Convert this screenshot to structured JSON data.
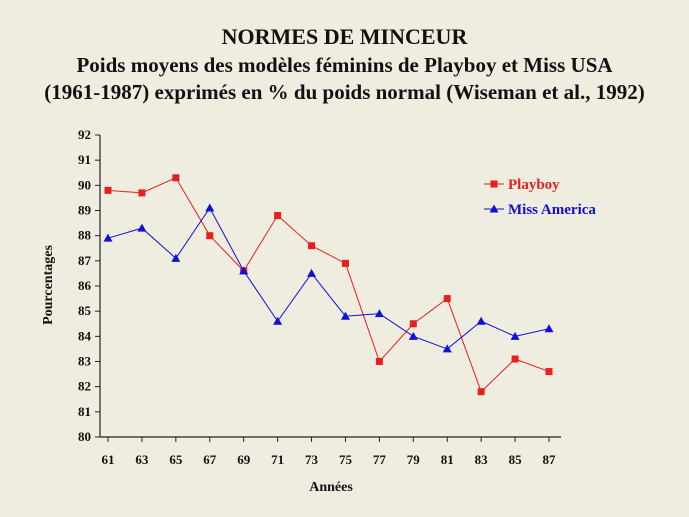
{
  "title": {
    "line1": "NORMES DE MINCEUR",
    "line2": "Poids moyens des modèles féminins de Playboy et Miss USA",
    "line3": "(1961-1987) exprimés en % du poids normal (Wiseman et al., 1992)"
  },
  "chart_data": {
    "type": "line",
    "xlabel": "Années",
    "ylabel": "Pourcentages",
    "categories": [
      "61",
      "63",
      "65",
      "67",
      "69",
      "71",
      "73",
      "75",
      "77",
      "79",
      "81",
      "83",
      "85",
      "87"
    ],
    "ylim": [
      80,
      92
    ],
    "yticks": [
      80,
      81,
      82,
      83,
      84,
      85,
      86,
      87,
      88,
      89,
      90,
      91,
      92
    ],
    "grid": false,
    "legend": "top-right",
    "series": [
      {
        "name": "Playboy",
        "color": "#e8201d",
        "marker": "square",
        "values": [
          89.8,
          89.7,
          90.3,
          88.0,
          86.6,
          88.8,
          87.6,
          86.9,
          83.0,
          84.5,
          85.5,
          81.8,
          83.1,
          82.6
        ]
      },
      {
        "name": "Miss America",
        "color": "#1010d8",
        "marker": "triangle",
        "values": [
          87.9,
          88.3,
          87.1,
          89.1,
          86.6,
          84.6,
          86.5,
          84.8,
          84.9,
          84.0,
          83.5,
          84.6,
          84.0,
          84.3
        ]
      }
    ]
  }
}
